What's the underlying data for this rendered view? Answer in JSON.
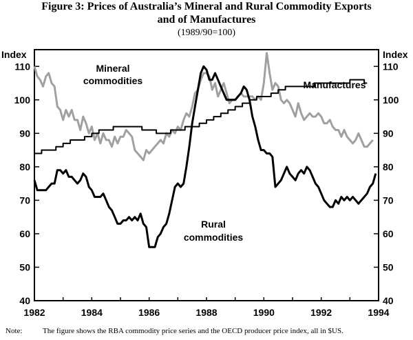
{
  "chart_data": {
    "type": "line",
    "title": "Figure 3: Prices of Australia’s Mineral and Rural Commodity Exports",
    "title_line2": "and of Manufactures",
    "subtitle": "(1989/90=100)",
    "ylabel_left": "Index",
    "ylabel_right": "Index",
    "ylim": [
      40,
      115
    ],
    "yticks": [
      40,
      50,
      60,
      70,
      80,
      90,
      100,
      110
    ],
    "xlim": [
      1982,
      1994
    ],
    "xticks": [
      1982,
      1984,
      1986,
      1988,
      1990,
      1992,
      1994
    ],
    "series": [
      {
        "name": "Mineral commodities",
        "label_line1": "Mineral",
        "label_line2": "commodities",
        "color": "#a0a0a0",
        "x": [
          1982.0,
          1982.1,
          1982.2,
          1982.3,
          1982.4,
          1982.5,
          1982.6,
          1982.7,
          1982.8,
          1982.9,
          1983.0,
          1983.1,
          1983.2,
          1983.3,
          1983.4,
          1983.5,
          1983.6,
          1983.7,
          1983.8,
          1983.9,
          1984.0,
          1984.1,
          1984.2,
          1984.3,
          1984.4,
          1984.5,
          1984.6,
          1984.7,
          1984.8,
          1984.9,
          1985.0,
          1985.1,
          1985.2,
          1985.3,
          1985.4,
          1985.5,
          1985.6,
          1985.7,
          1985.8,
          1985.9,
          1986.0,
          1986.1,
          1986.2,
          1986.3,
          1986.4,
          1986.5,
          1986.6,
          1986.7,
          1986.8,
          1986.9,
          1987.0,
          1987.1,
          1987.2,
          1987.3,
          1987.4,
          1987.5,
          1987.6,
          1987.7,
          1987.8,
          1987.9,
          1988.0,
          1988.1,
          1988.2,
          1988.3,
          1988.4,
          1988.5,
          1988.6,
          1988.7,
          1988.8,
          1988.9,
          1989.0,
          1989.1,
          1989.2,
          1989.3,
          1989.4,
          1989.5,
          1989.6,
          1989.7,
          1989.8,
          1989.9,
          1990.0,
          1990.1,
          1990.2,
          1990.3,
          1990.4,
          1990.5,
          1990.6,
          1990.7,
          1990.8,
          1990.9,
          1991.0,
          1991.1,
          1991.2,
          1991.3,
          1991.4,
          1991.5,
          1991.6,
          1991.7,
          1991.8,
          1991.9,
          1992.0,
          1992.1,
          1992.2,
          1992.3,
          1992.4,
          1992.5,
          1992.6,
          1992.7,
          1992.8,
          1992.9,
          1993.0,
          1993.1,
          1993.2,
          1993.3,
          1993.4,
          1993.5,
          1993.6,
          1993.7,
          1993.8
        ],
        "y": [
          110,
          107,
          106,
          104,
          107,
          108,
          105,
          104,
          98,
          97,
          94,
          97,
          95,
          97,
          94,
          94,
          91,
          95,
          93,
          90,
          92,
          88,
          90,
          87,
          90,
          88,
          88,
          86,
          89,
          87,
          89,
          89,
          91,
          90,
          89,
          85,
          84,
          83,
          82,
          85,
          84,
          85,
          86,
          87,
          88,
          87,
          90,
          89,
          91,
          90,
          92,
          91,
          94,
          96,
          95,
          98,
          102,
          103,
          106,
          108,
          108,
          107,
          103,
          105,
          101,
          103,
          105,
          102,
          99,
          100,
          100,
          101,
          102,
          101,
          101,
          101,
          101,
          100,
          101,
          100,
          105,
          114,
          108,
          103,
          105,
          104,
          100,
          99,
          100,
          99,
          97,
          95,
          99,
          96,
          94,
          95,
          96,
          95,
          95,
          96,
          95,
          93,
          93,
          94,
          92,
          91,
          91,
          89,
          91,
          89,
          88,
          87,
          88,
          90,
          88,
          86,
          86,
          87,
          88
        ],
        "label_anchor": "top-left"
      },
      {
        "name": "Manufactures",
        "label_line1": "Manufactures",
        "color": "#000000",
        "x": [
          1982.0,
          1982.25,
          1982.5,
          1982.75,
          1983.0,
          1983.25,
          1983.5,
          1983.75,
          1984.0,
          1984.25,
          1984.5,
          1984.75,
          1985.0,
          1985.25,
          1985.5,
          1985.75,
          1986.0,
          1986.25,
          1986.5,
          1986.75,
          1987.0,
          1987.25,
          1987.5,
          1987.75,
          1988.0,
          1988.25,
          1988.5,
          1988.75,
          1989.0,
          1989.25,
          1989.5,
          1989.75,
          1990.0,
          1990.25,
          1990.5,
          1990.75,
          1991.0,
          1991.25,
          1991.5,
          1991.75,
          1992.0,
          1992.25,
          1992.5,
          1992.75,
          1993.0,
          1993.25,
          1993.5,
          1993.6
        ],
        "y": [
          84,
          85,
          85,
          86,
          87,
          88,
          88,
          89,
          90,
          91,
          91,
          92,
          92,
          92,
          92,
          91,
          91,
          90,
          90,
          91,
          91,
          92,
          92,
          93,
          94,
          95,
          96,
          97,
          98,
          99,
          100,
          101,
          101,
          102,
          103,
          104,
          104,
          104,
          104,
          105,
          105,
          105,
          105,
          105,
          106,
          106,
          105,
          105
        ],
        "label_anchor": "top-right"
      },
      {
        "name": "Rural commodities",
        "label_line1": "Rural",
        "label_line2": "commodities",
        "color": "#000000",
        "x": [
          1982.0,
          1982.1,
          1982.2,
          1982.3,
          1982.4,
          1982.5,
          1982.6,
          1982.7,
          1982.8,
          1982.9,
          1983.0,
          1983.1,
          1983.2,
          1983.3,
          1983.4,
          1983.5,
          1983.6,
          1983.7,
          1983.8,
          1983.9,
          1984.0,
          1984.1,
          1984.2,
          1984.3,
          1984.4,
          1984.5,
          1984.6,
          1984.7,
          1984.8,
          1984.9,
          1985.0,
          1985.1,
          1985.2,
          1985.3,
          1985.4,
          1985.5,
          1985.6,
          1985.7,
          1985.8,
          1985.9,
          1986.0,
          1986.1,
          1986.2,
          1986.3,
          1986.4,
          1986.5,
          1986.6,
          1986.7,
          1986.8,
          1986.9,
          1987.0,
          1987.1,
          1987.2,
          1987.3,
          1987.4,
          1987.5,
          1987.6,
          1987.7,
          1987.8,
          1987.9,
          1988.0,
          1988.1,
          1988.2,
          1988.3,
          1988.4,
          1988.5,
          1988.6,
          1988.7,
          1988.8,
          1988.9,
          1989.0,
          1989.1,
          1989.2,
          1989.3,
          1989.4,
          1989.5,
          1989.6,
          1989.7,
          1989.8,
          1989.9,
          1990.0,
          1990.1,
          1990.2,
          1990.3,
          1990.4,
          1990.5,
          1990.6,
          1990.7,
          1990.8,
          1990.9,
          1991.0,
          1991.1,
          1991.2,
          1991.3,
          1991.4,
          1991.5,
          1991.6,
          1991.7,
          1991.8,
          1991.9,
          1992.0,
          1992.1,
          1992.2,
          1992.3,
          1992.4,
          1992.5,
          1992.6,
          1992.7,
          1992.8,
          1992.9,
          1993.0,
          1993.1,
          1993.2,
          1993.3,
          1993.4,
          1993.5,
          1993.6,
          1993.7,
          1993.8,
          1993.9
        ],
        "y": [
          76,
          73,
          73,
          73,
          73,
          74,
          75,
          75,
          79,
          79,
          78,
          79,
          77,
          77,
          76,
          75,
          76,
          78,
          77,
          74,
          73,
          71,
          71,
          71,
          72,
          70,
          68,
          67,
          65,
          63,
          63,
          64,
          64,
          65,
          64,
          65,
          64,
          66,
          63,
          62,
          56,
          56,
          56,
          59,
          60,
          62,
          63,
          66,
          70,
          74,
          75,
          74,
          75,
          80,
          86,
          93,
          98,
          103,
          108,
          110,
          109,
          106,
          106,
          108,
          106,
          104,
          102,
          100,
          100,
          100,
          100,
          101,
          102,
          104,
          103,
          100,
          95,
          92,
          88,
          85,
          85,
          84,
          84,
          83,
          74,
          75,
          76,
          78,
          80,
          78,
          77,
          76,
          78,
          79,
          78,
          80,
          79,
          77,
          75,
          74,
          72,
          70,
          69,
          68,
          68,
          70,
          69,
          71,
          70,
          71,
          70,
          71,
          70,
          69,
          70,
          71,
          72,
          74,
          75,
          78
        ],
        "label_anchor": "bottom-center"
      }
    ]
  },
  "note_label": "Note:",
  "note_text": "The figure shows the RBA commodity price series and the OECD producer price index, all in $US."
}
